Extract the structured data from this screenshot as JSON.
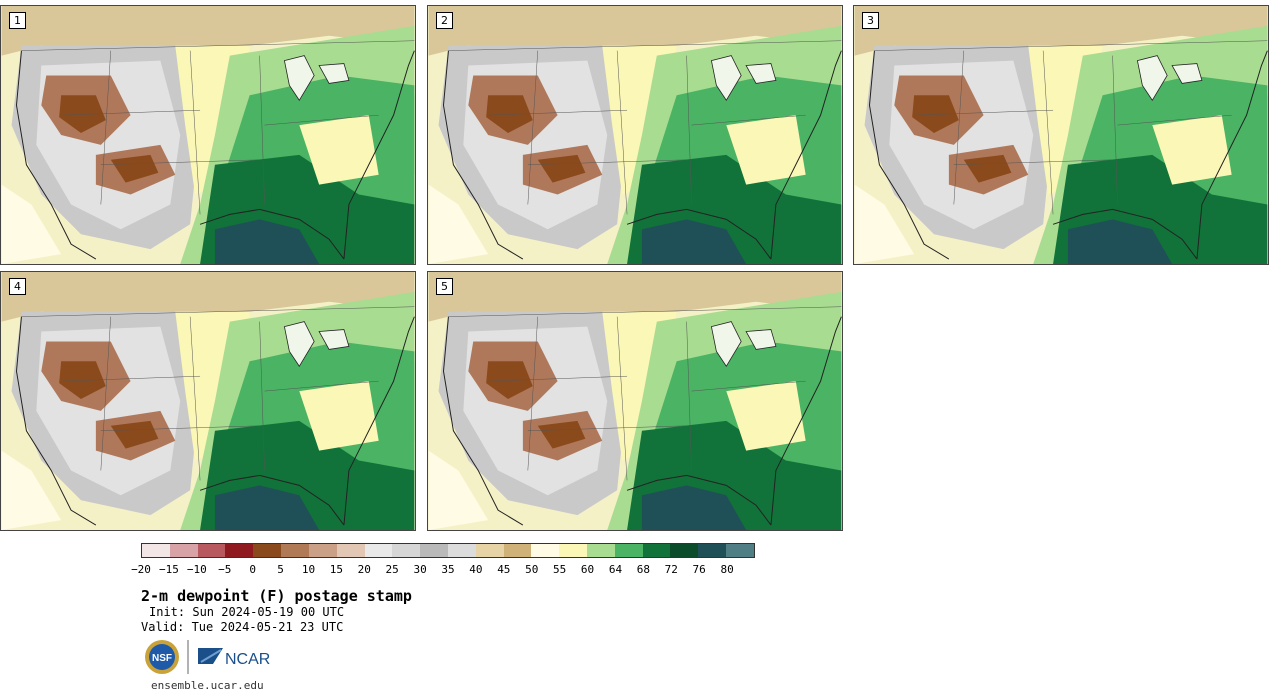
{
  "panels": [
    {
      "label": "1"
    },
    {
      "label": "2"
    },
    {
      "label": "3"
    },
    {
      "label": "4"
    },
    {
      "label": "5"
    }
  ],
  "colorbar": {
    "colors": [
      "#f2e6e6",
      "#d8a3a6",
      "#b8585f",
      "#8f1a1f",
      "#8a4a1c",
      "#b07a56",
      "#caa086",
      "#e3c7b5",
      "#e9e9e9",
      "#d6d6d6",
      "#b9b9b9",
      "#dcdcdc",
      "#e6d4a6",
      "#ceb278",
      "#fffbe4",
      "#fbf7b6",
      "#a8dc90",
      "#4ab364",
      "#11733a",
      "#0b4d2a",
      "#1f5058",
      "#4f7e84"
    ],
    "tick_labels": [
      "−20",
      "−15",
      "−10",
      "−5",
      "0",
      "5",
      "10",
      "15",
      "20",
      "25",
      "30",
      "35",
      "40",
      "45",
      "50",
      "55",
      "60",
      "64",
      "68",
      "72",
      "76",
      "80"
    ]
  },
  "title": "2-m dewpoint (F) postage stamp",
  "init": "Init: Sun 2024-05-19 00 UTC",
  "valid": "Valid: Tue 2024-05-21 23 UTC",
  "logos": {
    "nsf_text": "NSF",
    "ncar_text": "NCAR",
    "nsf_icon": "nsf-logo-icon",
    "ncar_icon": "ncar-logo-icon"
  },
  "footer_url": "ensemble.ucar.edu"
}
